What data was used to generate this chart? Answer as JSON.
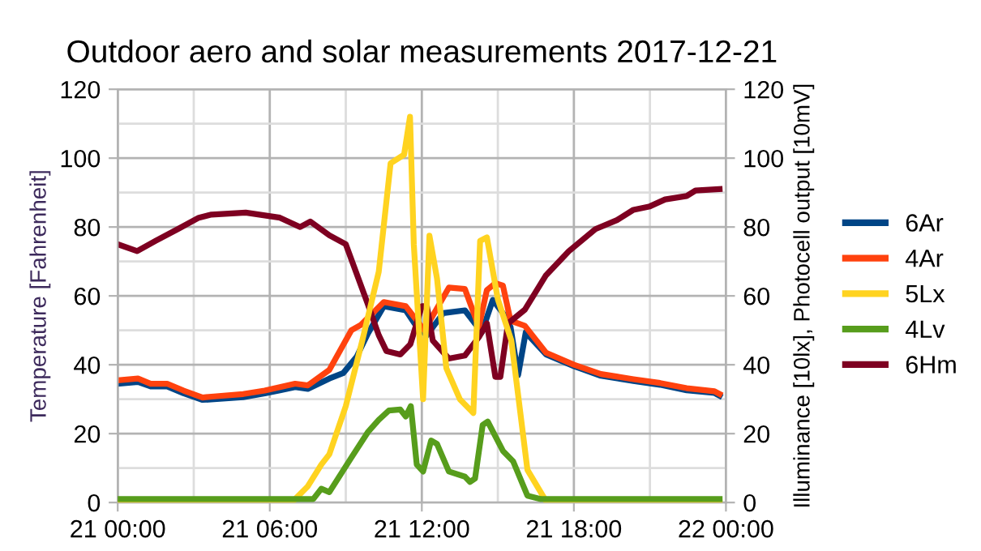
{
  "chart_data": {
    "type": "line",
    "title": "Outdoor aero and solar measurements 2017-12-21",
    "ylabel": "Temperature [Fahrenheit]",
    "y2label": "Illuminance [10lx], Photocell output [10mV]",
    "xlim": [
      "2017-12-21T00:00",
      "2017-12-22T00:00"
    ],
    "xticks": [
      {
        "value": "2017-12-21T00:00",
        "label": "21 00:00"
      },
      {
        "value": "2017-12-21T06:00",
        "label": "21 06:00"
      },
      {
        "value": "2017-12-21T12:00",
        "label": "21 12:00"
      },
      {
        "value": "2017-12-21T18:00",
        "label": "21 18:00"
      },
      {
        "value": "2017-12-22T00:00",
        "label": "22 00:00"
      }
    ],
    "ylim": [
      0,
      120
    ],
    "yticks": [
      0,
      20,
      40,
      60,
      80,
      100,
      120
    ],
    "y2lim": [
      0,
      120
    ],
    "y2ticks": [
      0,
      20,
      40,
      60,
      80,
      100,
      120
    ],
    "grid": true,
    "legend": "right",
    "marker": "none",
    "line_style": "solid",
    "series": [
      {
        "name": "6Ar",
        "color": "#004586",
        "x": [
          "2017-12-21T00:00",
          "2017-12-21T00:48",
          "2017-12-21T01:18",
          "2017-12-21T01:57",
          "2017-12-21T02:36",
          "2017-12-21T03:21",
          "2017-12-21T03:48",
          "2017-12-21T04:57",
          "2017-12-21T05:48",
          "2017-12-21T06:24",
          "2017-12-21T07:00",
          "2017-12-21T07:30",
          "2017-12-21T08:21",
          "2017-12-21T08:54",
          "2017-12-21T09:26",
          "2017-12-21T09:52",
          "2017-12-21T10:30",
          "2017-12-21T11:22",
          "2017-12-21T11:48",
          "2017-12-21T12:12",
          "2017-12-21T12:51",
          "2017-12-21T13:42",
          "2017-12-21T14:22",
          "2017-12-21T14:48",
          "2017-12-21T15:12",
          "2017-12-21T15:30",
          "2017-12-21T15:48",
          "2017-12-21T16:06",
          "2017-12-21T16:54",
          "2017-12-21T18:00",
          "2017-12-21T19:04",
          "2017-12-21T20:21",
          "2017-12-21T21:24",
          "2017-12-21T22:27",
          "2017-12-21T23:33",
          "2017-12-21T23:45"
        ],
        "values": [
          34.5,
          35,
          33.7,
          33.7,
          31.7,
          29.8,
          30,
          30.6,
          31.7,
          32.6,
          33.5,
          33,
          36,
          37.6,
          42.4,
          49,
          57,
          55.8,
          51,
          48.6,
          55,
          55.8,
          49.4,
          58.8,
          55,
          51,
          37,
          49.4,
          43,
          39.6,
          36.8,
          35.3,
          34.2,
          32.6,
          31.8,
          31
        ]
      },
      {
        "name": "4Ar",
        "color": "#ff420e",
        "x": [
          "2017-12-21T00:00",
          "2017-12-21T00:48",
          "2017-12-21T01:18",
          "2017-12-21T01:57",
          "2017-12-21T02:36",
          "2017-12-21T03:21",
          "2017-12-21T03:48",
          "2017-12-21T04:57",
          "2017-12-21T05:48",
          "2017-12-21T06:24",
          "2017-12-21T07:00",
          "2017-12-21T07:30",
          "2017-12-21T08:21",
          "2017-12-21T09:13",
          "2017-12-21T09:36",
          "2017-12-21T10:30",
          "2017-12-21T11:22",
          "2017-12-21T12:06",
          "2017-12-21T13:04",
          "2017-12-21T13:42",
          "2017-12-21T14:15",
          "2017-12-21T14:34",
          "2017-12-21T14:54",
          "2017-12-21T15:12",
          "2017-12-21T15:30",
          "2017-12-21T16:04",
          "2017-12-21T16:54",
          "2017-12-21T18:00",
          "2017-12-21T19:04",
          "2017-12-21T20:21",
          "2017-12-21T21:24",
          "2017-12-21T22:27",
          "2017-12-21T23:33",
          "2017-12-21T23:45"
        ],
        "values": [
          35.5,
          36,
          34.5,
          34.5,
          32.5,
          30.5,
          30.8,
          31.5,
          32.5,
          33.5,
          34.5,
          34,
          38.5,
          50,
          51.6,
          58.2,
          57,
          50,
          62.4,
          62,
          51,
          61.7,
          63.7,
          63,
          52.8,
          51.3,
          43.5,
          40,
          37.3,
          35.8,
          34.7,
          33.2,
          32.3,
          31.5
        ]
      },
      {
        "name": "5Lx",
        "color": "#ffd320",
        "axis": "y2",
        "x": [
          "2017-12-21T00:00",
          "2017-12-21T06:52",
          "2017-12-21T07:30",
          "2017-12-21T08:02",
          "2017-12-21T08:21",
          "2017-12-21T09:00",
          "2017-12-21T09:39",
          "2017-12-21T10:18",
          "2017-12-21T10:46",
          "2017-12-21T11:18",
          "2017-12-21T11:32",
          "2017-12-21T11:41",
          "2017-12-21T12:03",
          "2017-12-21T12:18",
          "2017-12-21T12:36",
          "2017-12-21T12:58",
          "2017-12-21T13:30",
          "2017-12-21T14:02",
          "2017-12-21T14:18",
          "2017-12-21T14:34",
          "2017-12-21T15:00",
          "2017-12-21T15:32",
          "2017-12-21T16:10",
          "2017-12-21T16:56",
          "2017-12-21T23:45"
        ],
        "values": [
          0,
          0,
          4.7,
          11,
          14,
          28,
          47,
          67,
          98.5,
          101,
          112,
          75,
          30,
          77.5,
          65,
          39,
          30,
          26,
          76,
          77,
          59,
          47,
          9.5,
          0,
          0
        ]
      },
      {
        "name": "4Lv",
        "color": "#579d1c",
        "axis": "y2",
        "x": [
          "2017-12-21T00:00",
          "2017-12-21T07:43",
          "2017-12-21T08:02",
          "2017-12-21T08:21",
          "2017-12-21T09:13",
          "2017-12-21T09:52",
          "2017-12-21T10:18",
          "2017-12-21T10:42",
          "2017-12-21T11:09",
          "2017-12-21T11:22",
          "2017-12-21T11:34",
          "2017-12-21T11:48",
          "2017-12-21T12:03",
          "2017-12-21T12:22",
          "2017-12-21T12:36",
          "2017-12-21T13:04",
          "2017-12-21T13:42",
          "2017-12-21T13:54",
          "2017-12-21T14:06",
          "2017-12-21T14:24",
          "2017-12-21T14:36",
          "2017-12-21T15:12",
          "2017-12-21T15:36",
          "2017-12-21T16:10",
          "2017-12-21T16:42",
          "2017-12-21T23:45"
        ],
        "values": [
          1,
          1,
          4,
          3,
          13,
          20.4,
          24,
          26.7,
          27,
          25,
          28,
          11,
          9,
          18,
          17,
          9,
          7.5,
          6,
          7,
          22.5,
          23.5,
          15,
          12,
          2,
          1,
          1
        ]
      },
      {
        "name": "6Hm",
        "color": "#7e0021",
        "x": [
          "2017-12-21T00:00",
          "2017-12-21T00:46",
          "2017-12-21T01:30",
          "2017-12-21T02:24",
          "2017-12-21T03:12",
          "2017-12-21T03:42",
          "2017-12-21T05:03",
          "2017-12-21T06:24",
          "2017-12-21T07:12",
          "2017-12-21T07:36",
          "2017-12-21T08:21",
          "2017-12-21T09:00",
          "2017-12-21T09:18",
          "2017-12-21T09:51",
          "2017-12-21T10:18",
          "2017-12-21T10:36",
          "2017-12-21T11:09",
          "2017-12-21T11:33",
          "2017-12-21T12:00",
          "2017-12-21T12:12",
          "2017-12-21T12:26",
          "2017-12-21T13:04",
          "2017-12-21T13:42",
          "2017-12-21T14:15",
          "2017-12-21T14:34",
          "2017-12-21T14:54",
          "2017-12-21T15:06",
          "2017-12-21T15:24",
          "2017-12-21T16:04",
          "2017-12-21T16:54",
          "2017-12-21T17:48",
          "2017-12-21T18:51",
          "2017-12-21T19:42",
          "2017-12-21T20:21",
          "2017-12-21T21:00",
          "2017-12-21T21:36",
          "2017-12-21T22:27",
          "2017-12-21T22:48",
          "2017-12-21T23:45"
        ],
        "values": [
          75,
          73,
          76,
          79.5,
          82.7,
          83.6,
          84.2,
          82.7,
          80,
          81.6,
          77.6,
          75,
          69,
          58,
          48.6,
          44,
          43,
          46,
          57,
          57,
          47,
          41.8,
          42.7,
          48,
          52,
          36.5,
          36.5,
          52,
          56,
          66,
          73,
          79.4,
          82,
          85,
          86,
          88,
          89,
          90.6,
          91
        ]
      }
    ]
  }
}
